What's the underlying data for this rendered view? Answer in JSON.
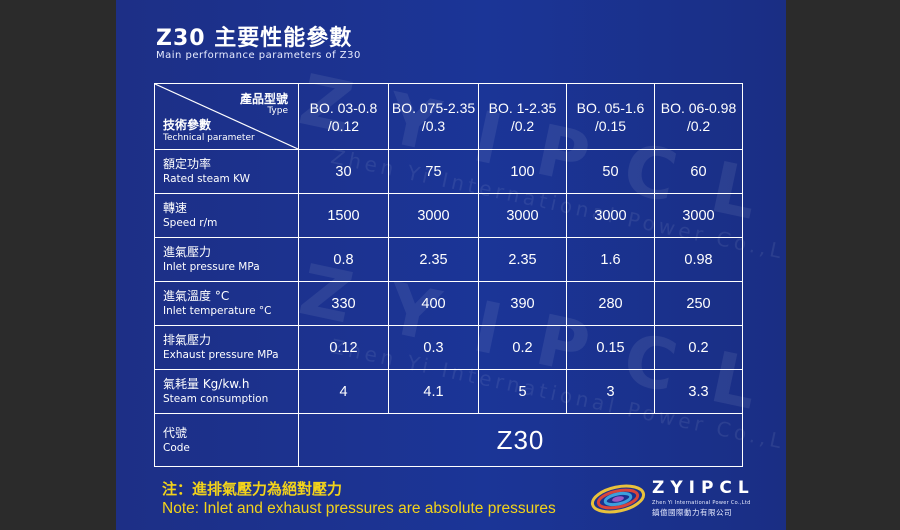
{
  "title": "Z30 主要性能參數",
  "subtitle": "Main performance parameters of Z30",
  "watermark": {
    "big": "ZYIPCL",
    "small": "Zhen Yi International Power Co.,Ltd"
  },
  "header": {
    "type_zh": "產品型號",
    "type_en": "Type",
    "param_zh": "技術參數",
    "param_en": "Technical parameter",
    "models": [
      {
        "line1": "BO. 03-0.8",
        "line2": "/0.12"
      },
      {
        "line1": "BO. 075-2.35",
        "line2": "/0.3"
      },
      {
        "line1": "BO. 1-2.35",
        "line2": "/0.2"
      },
      {
        "line1": "BO. 05-1.6",
        "line2": "/0.15"
      },
      {
        "line1": "BO. 06-0.98",
        "line2": "/0.2"
      }
    ]
  },
  "rows": [
    {
      "zh": "額定功率",
      "en": "Rated steam  KW",
      "values": [
        "30",
        "75",
        "100",
        "50",
        "60"
      ]
    },
    {
      "zh": "轉速",
      "en": "Speed   r/m",
      "values": [
        "1500",
        "3000",
        "3000",
        "3000",
        "3000"
      ]
    },
    {
      "zh": "進氣壓力",
      "en": "Inlet pressure  MPa",
      "values": [
        "0.8",
        "2.35",
        "2.35",
        "1.6",
        "0.98"
      ]
    },
    {
      "zh": "進氣溫度 °C",
      "en": "Inlet  temperature  °C",
      "values": [
        "330",
        "400",
        "390",
        "280",
        "250"
      ]
    },
    {
      "zh": "排氣壓力",
      "en": "Exhaust pressure  MPa",
      "values": [
        "0.12",
        "0.3",
        "0.2",
        "0.15",
        "0.2"
      ]
    },
    {
      "zh": "氣耗量 Kg/kw.h",
      "en": "Steam consumption",
      "values": [
        "4",
        "4.1",
        "5",
        "3",
        "3.3"
      ]
    }
  ],
  "code_row": {
    "zh": "代號",
    "en": "Code",
    "value": "Z30"
  },
  "note": {
    "zh": "注：進排氣壓力為絕對壓力",
    "en": "Note: Inlet and exhaust pressures are absolute pressures"
  },
  "logo": {
    "name": "ZYIPCL",
    "en": "Zhen Yi International Power Co.,Ltd",
    "zh": "鎮億國際動力有限公司"
  },
  "colors": {
    "background": "#1b3597",
    "accent": "#f3d31a",
    "border": "#ffffff"
  }
}
